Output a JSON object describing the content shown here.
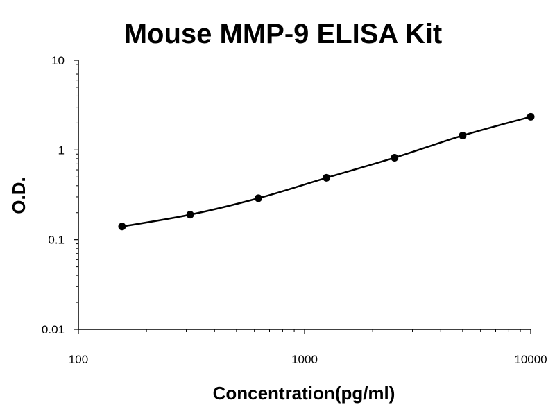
{
  "chart_data": {
    "type": "scatter",
    "title": "Mouse MMP-9 ELISA Kit",
    "xlabel": "Concentration(pg/ml)",
    "ylabel": "O.D.",
    "x_scale": "log",
    "y_scale": "log",
    "xlim": [
      100,
      10000
    ],
    "ylim": [
      0.01,
      10
    ],
    "x_ticks": [
      "100",
      "1000",
      "10000"
    ],
    "y_ticks": [
      "0.01",
      "0.1",
      "1",
      "10"
    ],
    "grid": false,
    "legend": "none",
    "series": [
      {
        "x": [
          156,
          312,
          625,
          1250,
          2500,
          5000,
          10000
        ],
        "y": [
          0.14,
          0.19,
          0.29,
          0.49,
          0.82,
          1.45,
          2.35
        ],
        "marker": "circle",
        "line": "smooth",
        "color": "#000000"
      }
    ]
  }
}
